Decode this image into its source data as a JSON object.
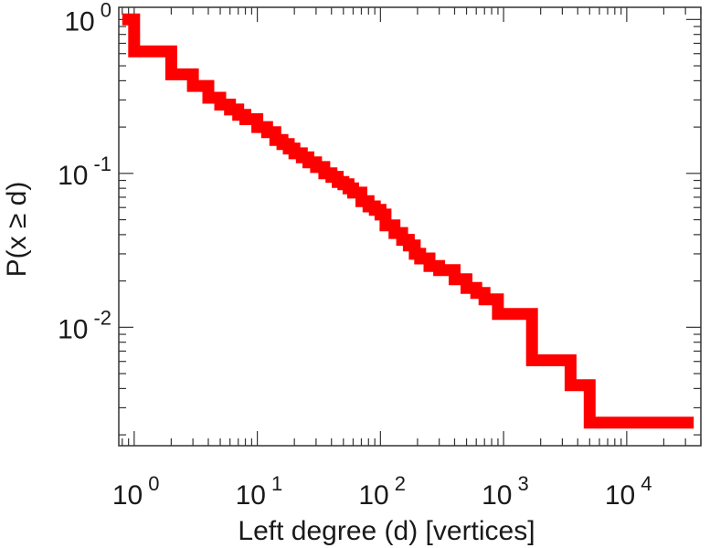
{
  "chart_data": {
    "type": "line",
    "step": true,
    "xscale": "log",
    "yscale": "log",
    "xlabel": "Left degree (d) [vertices]",
    "ylabel": "P(x ≥ d)",
    "xlim": [
      0.75,
      40000
    ],
    "ylim": [
      0.0017,
      1.2
    ],
    "x_ticks": [
      {
        "base": "10",
        "exp": "0",
        "value": 1
      },
      {
        "base": "10",
        "exp": "1",
        "value": 10
      },
      {
        "base": "10",
        "exp": "2",
        "value": 100
      },
      {
        "base": "10",
        "exp": "3",
        "value": 1000
      },
      {
        "base": "10",
        "exp": "4",
        "value": 10000
      }
    ],
    "y_ticks": [
      {
        "base": "10",
        "exp": "0",
        "value": 1
      },
      {
        "base": "10",
        "exp": "-1",
        "value": 0.1
      },
      {
        "base": "10",
        "exp": "-2",
        "value": 0.01
      }
    ],
    "series": [
      {
        "color": "#ff0000",
        "x": [
          0.8,
          1,
          2,
          3,
          4,
          5,
          6,
          7,
          8,
          10,
          12,
          14,
          16,
          18,
          20,
          23,
          26,
          30,
          35,
          40,
          45,
          50,
          55,
          60,
          70,
          80,
          90,
          100,
          110,
          130,
          150,
          170,
          190,
          210,
          250,
          300,
          400,
          500,
          600,
          700,
          900,
          1000,
          1700,
          2000,
          3500,
          5000,
          35000
        ],
        "y": [
          1.0,
          0.62,
          0.44,
          0.37,
          0.31,
          0.28,
          0.26,
          0.24,
          0.225,
          0.2,
          0.185,
          0.165,
          0.155,
          0.145,
          0.135,
          0.127,
          0.118,
          0.11,
          0.1,
          0.095,
          0.088,
          0.085,
          0.08,
          0.075,
          0.066,
          0.061,
          0.058,
          0.054,
          0.046,
          0.041,
          0.037,
          0.034,
          0.03,
          0.028,
          0.025,
          0.0235,
          0.0205,
          0.018,
          0.0167,
          0.0152,
          0.0122,
          0.0122,
          0.0061,
          0.0061,
          0.0042,
          0.0024,
          0.0024
        ]
      }
    ]
  }
}
